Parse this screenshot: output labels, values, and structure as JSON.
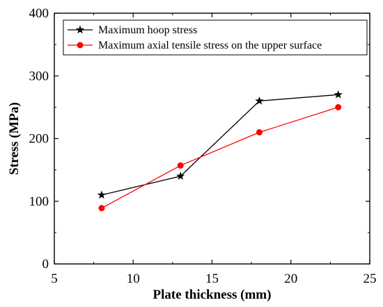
{
  "chart_data": {
    "type": "line",
    "xlabel": "Plate thickness (mm)",
    "ylabel": "Stress (MPa)",
    "xlim": [
      5,
      25
    ],
    "ylim": [
      0,
      400
    ],
    "xticks": [
      5,
      10,
      15,
      20,
      25
    ],
    "yticks": [
      0,
      100,
      200,
      300,
      400
    ],
    "grid": false,
    "legend_position": "top-right",
    "series": [
      {
        "name": "Maximum hoop stress",
        "color": "#000000",
        "marker": "star",
        "x": [
          8,
          13,
          18,
          23
        ],
        "y": [
          110,
          140,
          260,
          270
        ]
      },
      {
        "name": "Maximum axial tensile stress on the upper surface",
        "color": "#ff0000",
        "marker": "circle",
        "x": [
          8,
          13,
          18,
          23
        ],
        "y": [
          89,
          157,
          210,
          250
        ]
      }
    ]
  }
}
